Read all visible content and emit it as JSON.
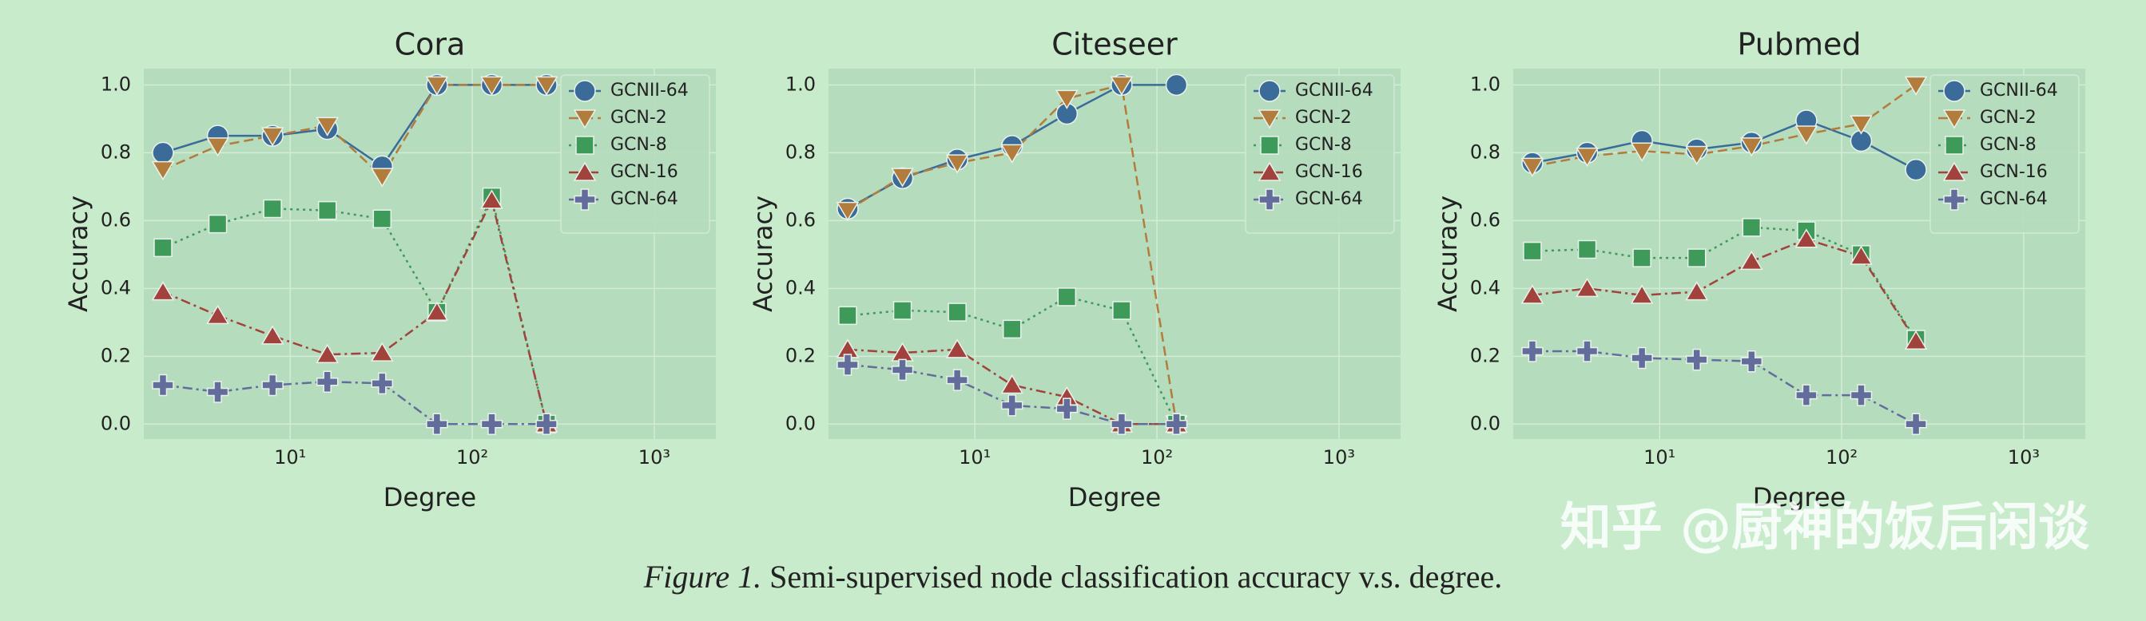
{
  "chart_data": [
    {
      "type": "line",
      "title": "Cora",
      "x_label": "Degree",
      "y_label": "Accuracy",
      "x": [
        2,
        4,
        8,
        16,
        32,
        64,
        128,
        256
      ],
      "xlog": true,
      "grid": true,
      "legend": "upper right",
      "xlim": [
        1.57,
        2180
      ],
      "ylim": [
        -0.044,
        1.048
      ],
      "xticks": [
        {
          "value": 10,
          "label": "10¹"
        },
        {
          "value": 100,
          "label": "10²"
        },
        {
          "value": 1000,
          "label": "10³"
        }
      ],
      "yticks": [
        {
          "value": 0,
          "label": "0.0"
        },
        0.2,
        0.4,
        0.6,
        0.8,
        {
          "value": 1,
          "label": "1.0"
        }
      ],
      "series": [
        {
          "name": "GCNII-64",
          "color": "#3b6b98",
          "marker": "circle",
          "dash": "solid",
          "values": [
            0.8,
            0.85,
            0.85,
            0.87,
            0.76,
            1.0,
            1.0,
            1.0
          ]
        },
        {
          "name": "GCN-2",
          "color": "#b27c3c",
          "marker": "triangle-down",
          "dash": "dashed",
          "values": [
            0.75,
            0.82,
            0.85,
            0.88,
            0.73,
            1.0,
            1.0,
            1.0
          ]
        },
        {
          "name": "GCN-8",
          "color": "#3d9a58",
          "marker": "square",
          "dash": "dotted",
          "values": [
            0.52,
            0.59,
            0.635,
            0.63,
            0.605,
            0.33,
            0.67,
            0.0
          ]
        },
        {
          "name": "GCN-16",
          "color": "#a2423c",
          "marker": "triangle-up",
          "dash": "dashdot",
          "values": [
            0.39,
            0.32,
            0.26,
            0.205,
            0.21,
            0.33,
            0.66,
            0.0
          ]
        },
        {
          "name": "GCN-64",
          "color": "#636d9b",
          "marker": "plus",
          "dash": "dashdot",
          "values": [
            0.115,
            0.095,
            0.115,
            0.125,
            0.12,
            0.0,
            0.0,
            0.0
          ]
        }
      ]
    },
    {
      "type": "line",
      "title": "Citeseer",
      "x_label": "Degree",
      "y_label": "Accuracy",
      "x": [
        2,
        4,
        8,
        16,
        32,
        64,
        128
      ],
      "xlog": true,
      "grid": true,
      "legend": "upper right",
      "xlim": [
        1.57,
        2180
      ],
      "ylim": [
        -0.044,
        1.048
      ],
      "xticks": [
        {
          "value": 10,
          "label": "10¹"
        },
        {
          "value": 100,
          "label": "10²"
        },
        {
          "value": 1000,
          "label": "10³"
        }
      ],
      "yticks": [
        {
          "value": 0,
          "label": "0.0"
        },
        0.2,
        0.4,
        0.6,
        0.8,
        {
          "value": 1,
          "label": "1.0"
        }
      ],
      "series": [
        {
          "name": "GCNII-64",
          "color": "#3b6b98",
          "marker": "circle",
          "dash": "solid",
          "values": [
            0.635,
            0.725,
            0.78,
            0.82,
            0.915,
            1.0,
            1.0
          ]
        },
        {
          "name": "GCN-2",
          "color": "#b27c3c",
          "marker": "triangle-down",
          "dash": "dashed",
          "values": [
            0.63,
            0.73,
            0.77,
            0.8,
            0.96,
            1.0,
            0.0
          ]
        },
        {
          "name": "GCN-8",
          "color": "#3d9a58",
          "marker": "square",
          "dash": "dotted",
          "values": [
            0.32,
            0.335,
            0.33,
            0.28,
            0.375,
            0.335,
            0.0
          ]
        },
        {
          "name": "GCN-16",
          "color": "#a2423c",
          "marker": "triangle-up",
          "dash": "dashdot",
          "values": [
            0.22,
            0.21,
            0.22,
            0.115,
            0.08,
            0.0,
            0.0
          ]
        },
        {
          "name": "GCN-64",
          "color": "#636d9b",
          "marker": "plus",
          "dash": "dashdot",
          "values": [
            0.175,
            0.16,
            0.13,
            0.055,
            0.045,
            0.0,
            0.0
          ]
        }
      ]
    },
    {
      "type": "line",
      "title": "Pubmed",
      "x_label": "Degree",
      "y_label": "Accuracy",
      "x": [
        2,
        4,
        8,
        16,
        32,
        64,
        128,
        256
      ],
      "xlog": true,
      "grid": true,
      "legend": "upper right",
      "xlim": [
        1.57,
        2180
      ],
      "ylim": [
        -0.044,
        1.048
      ],
      "xticks": [
        {
          "value": 10,
          "label": "10¹"
        },
        {
          "value": 100,
          "label": "10²"
        },
        {
          "value": 1000,
          "label": "10³"
        }
      ],
      "yticks": [
        {
          "value": 0,
          "label": "0.0"
        },
        0.2,
        0.4,
        0.6,
        0.8,
        {
          "value": 1,
          "label": "1.0"
        }
      ],
      "series": [
        {
          "name": "GCNII-64",
          "color": "#3b6b98",
          "marker": "circle",
          "dash": "solid",
          "values": [
            0.77,
            0.8,
            0.835,
            0.81,
            0.83,
            0.895,
            0.835,
            0.75
          ]
        },
        {
          "name": "GCN-2",
          "color": "#b27c3c",
          "marker": "triangle-down",
          "dash": "dashed",
          "values": [
            0.76,
            0.79,
            0.805,
            0.795,
            0.82,
            0.855,
            0.885,
            1.0
          ]
        },
        {
          "name": "GCN-8",
          "color": "#3d9a58",
          "marker": "square",
          "dash": "dotted",
          "values": [
            0.51,
            0.515,
            0.49,
            0.49,
            0.58,
            0.57,
            0.5,
            0.25
          ]
        },
        {
          "name": "GCN-16",
          "color": "#a2423c",
          "marker": "triangle-up",
          "dash": "dashdot",
          "values": [
            0.38,
            0.4,
            0.38,
            0.39,
            0.48,
            0.545,
            0.495,
            0.245
          ]
        },
        {
          "name": "GCN-64",
          "color": "#636d9b",
          "marker": "plus",
          "dash": "dashdot",
          "values": [
            0.215,
            0.215,
            0.195,
            0.19,
            0.185,
            0.085,
            0.085,
            0.0
          ]
        }
      ]
    }
  ],
  "caption": {
    "label": "Figure 1.",
    "text": "Semi-supervised node classification accuracy v.s. degree."
  },
  "watermark": "知乎 @厨神的饭后闲谈"
}
